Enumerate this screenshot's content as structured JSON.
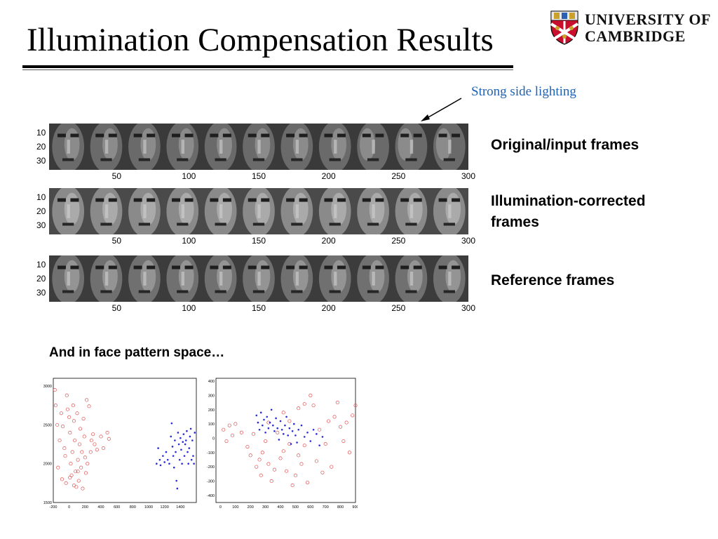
{
  "slide": {
    "title": "Illumination Compensation Results",
    "logo": {
      "line1": "UNIVERSITY OF",
      "line2": "CAMBRIDGE"
    },
    "annotation": "Strong side lighting",
    "subheading": "And in face pattern space…"
  },
  "strips": [
    {
      "label": "Original/input frames",
      "yticks": [
        "10",
        "20",
        "30"
      ],
      "xticks": [
        "50",
        "100",
        "150",
        "200",
        "250",
        "300"
      ]
    },
    {
      "label": "Illumination-corrected frames",
      "yticks": [
        "10",
        "20",
        "30"
      ],
      "xticks": [
        "50",
        "100",
        "150",
        "200",
        "250",
        "300"
      ]
    },
    {
      "label": "Reference frames",
      "yticks": [
        "10",
        "20",
        "30"
      ],
      "xticks": [
        "50",
        "100",
        "150",
        "200",
        "250",
        "300"
      ]
    }
  ],
  "scatter_plots": [
    {
      "yticks": [
        "3000",
        "2500",
        "2000",
        "1500"
      ],
      "xticks": [
        "-200",
        "0",
        "200",
        "400",
        "600",
        "800",
        "1000",
        "1200",
        "1400"
      ],
      "xlim": [
        -200,
        1600
      ],
      "ylim": [
        1500,
        3100
      ],
      "series": [
        {
          "marker": "circle",
          "color": "#e05050",
          "points": [
            [
              -180,
              2950
            ],
            [
              -170,
              2750
            ],
            [
              -150,
              2500
            ],
            [
              -120,
              2300
            ],
            [
              -100,
              2650
            ],
            [
              -80,
              2480
            ],
            [
              -60,
              2200
            ],
            [
              -50,
              2100
            ],
            [
              -30,
              2880
            ],
            [
              -20,
              2700
            ],
            [
              0,
              2600
            ],
            [
              10,
              2400
            ],
            [
              20,
              2000
            ],
            [
              30,
              1850
            ],
            [
              40,
              2150
            ],
            [
              50,
              2750
            ],
            [
              60,
              2550
            ],
            [
              70,
              2300
            ],
            [
              80,
              1900
            ],
            [
              90,
              1700
            ],
            [
              100,
              2650
            ],
            [
              110,
              2050
            ],
            [
              120,
              1780
            ],
            [
              130,
              2250
            ],
            [
              140,
              2450
            ],
            [
              150,
              1950
            ],
            [
              160,
              2150
            ],
            [
              170,
              1680
            ],
            [
              180,
              2580
            ],
            [
              190,
              2350
            ],
            [
              200,
              2080
            ],
            [
              210,
              1880
            ],
            [
              220,
              2820
            ],
            [
              230,
              2000
            ],
            [
              250,
              2740
            ],
            [
              270,
              2150
            ],
            [
              280,
              2300
            ],
            [
              300,
              2380
            ],
            [
              320,
              2250
            ],
            [
              350,
              2180
            ],
            [
              400,
              2350
            ],
            [
              430,
              2200
            ],
            [
              480,
              2400
            ],
            [
              500,
              2320
            ],
            [
              -140,
              1950
            ],
            [
              -90,
              1800
            ],
            [
              -40,
              1750
            ],
            [
              10,
              1820
            ],
            [
              60,
              1720
            ],
            [
              110,
              1900
            ]
          ]
        },
        {
          "marker": "dot",
          "color": "#2a2ad8",
          "points": [
            [
              1100,
              2000
            ],
            [
              1120,
              2200
            ],
            [
              1140,
              2050
            ],
            [
              1150,
              1980
            ],
            [
              1180,
              2100
            ],
            [
              1200,
              2020
            ],
            [
              1220,
              2150
            ],
            [
              1240,
              2050
            ],
            [
              1260,
              2000
            ],
            [
              1280,
              2350
            ],
            [
              1290,
              2520
            ],
            [
              1300,
              2220
            ],
            [
              1310,
              2100
            ],
            [
              1320,
              1950
            ],
            [
              1330,
              2300
            ],
            [
              1340,
              2150
            ],
            [
              1350,
              1780
            ],
            [
              1360,
              1680
            ],
            [
              1370,
              2400
            ],
            [
              1380,
              2250
            ],
            [
              1390,
              2050
            ],
            [
              1400,
              2330
            ],
            [
              1410,
              2180
            ],
            [
              1420,
              2000
            ],
            [
              1430,
              2280
            ],
            [
              1440,
              2380
            ],
            [
              1450,
              2100
            ],
            [
              1460,
              2250
            ],
            [
              1470,
              2300
            ],
            [
              1480,
              2420
            ],
            [
              1490,
              2150
            ],
            [
              1500,
              2000
            ],
            [
              1510,
              2200
            ],
            [
              1520,
              2350
            ],
            [
              1530,
              2450
            ],
            [
              1540,
              2050
            ],
            [
              1550,
              2300
            ],
            [
              1560,
              2100
            ],
            [
              1570,
              2000
            ],
            [
              1580,
              2400
            ]
          ]
        }
      ]
    },
    {
      "yticks": [
        "400",
        "300",
        "200",
        "100",
        "0",
        "-100",
        "-200",
        "-300",
        "-400"
      ],
      "xticks": [
        "0",
        "100",
        "200",
        "300",
        "400",
        "500",
        "600",
        "700",
        "800",
        "900"
      ],
      "xlim": [
        -30,
        900
      ],
      "ylim": [
        -450,
        420
      ],
      "series": [
        {
          "marker": "circle",
          "color": "#e05050",
          "points": [
            [
              20,
              60
            ],
            [
              40,
              -20
            ],
            [
              60,
              90
            ],
            [
              80,
              20
            ],
            [
              100,
              100
            ],
            [
              140,
              40
            ],
            [
              180,
              -60
            ],
            [
              200,
              -120
            ],
            [
              220,
              30
            ],
            [
              240,
              -200
            ],
            [
              260,
              -150
            ],
            [
              270,
              -260
            ],
            [
              280,
              -100
            ],
            [
              300,
              -20
            ],
            [
              320,
              -180
            ],
            [
              340,
              -300
            ],
            [
              360,
              -220
            ],
            [
              380,
              40
            ],
            [
              400,
              -140
            ],
            [
              420,
              -90
            ],
            [
              440,
              -230
            ],
            [
              460,
              -40
            ],
            [
              480,
              -330
            ],
            [
              500,
              -260
            ],
            [
              520,
              -120
            ],
            [
              540,
              -180
            ],
            [
              560,
              -50
            ],
            [
              580,
              -310
            ],
            [
              600,
              300
            ],
            [
              620,
              230
            ],
            [
              640,
              -160
            ],
            [
              660,
              60
            ],
            [
              680,
              -240
            ],
            [
              700,
              -40
            ],
            [
              720,
              120
            ],
            [
              740,
              -200
            ],
            [
              760,
              150
            ],
            [
              780,
              250
            ],
            [
              800,
              80
            ],
            [
              820,
              -20
            ],
            [
              840,
              110
            ],
            [
              860,
              -100
            ],
            [
              880,
              160
            ],
            [
              900,
              230
            ],
            [
              320,
              110
            ],
            [
              420,
              180
            ],
            [
              520,
              210
            ],
            [
              560,
              240
            ],
            [
              460,
              120
            ]
          ]
        },
        {
          "marker": "dot",
          "color": "#2a2ad8",
          "points": [
            [
              240,
              160
            ],
            [
              250,
              110
            ],
            [
              260,
              60
            ],
            [
              270,
              180
            ],
            [
              280,
              90
            ],
            [
              290,
              130
            ],
            [
              300,
              40
            ],
            [
              310,
              150
            ],
            [
              320,
              70
            ],
            [
              330,
              110
            ],
            [
              340,
              200
            ],
            [
              350,
              90
            ],
            [
              360,
              50
            ],
            [
              370,
              140
            ],
            [
              380,
              70
            ],
            [
              390,
              -10
            ],
            [
              400,
              120
            ],
            [
              410,
              60
            ],
            [
              420,
              30
            ],
            [
              430,
              90
            ],
            [
              440,
              150
            ],
            [
              450,
              20
            ],
            [
              460,
              70
            ],
            [
              470,
              -40
            ],
            [
              480,
              50
            ],
            [
              490,
              100
            ],
            [
              500,
              20
            ],
            [
              510,
              -30
            ],
            [
              520,
              60
            ],
            [
              540,
              90
            ],
            [
              560,
              10
            ],
            [
              580,
              40
            ],
            [
              600,
              -20
            ],
            [
              620,
              60
            ],
            [
              640,
              30
            ],
            [
              660,
              -50
            ],
            [
              680,
              10
            ]
          ]
        }
      ]
    }
  ]
}
